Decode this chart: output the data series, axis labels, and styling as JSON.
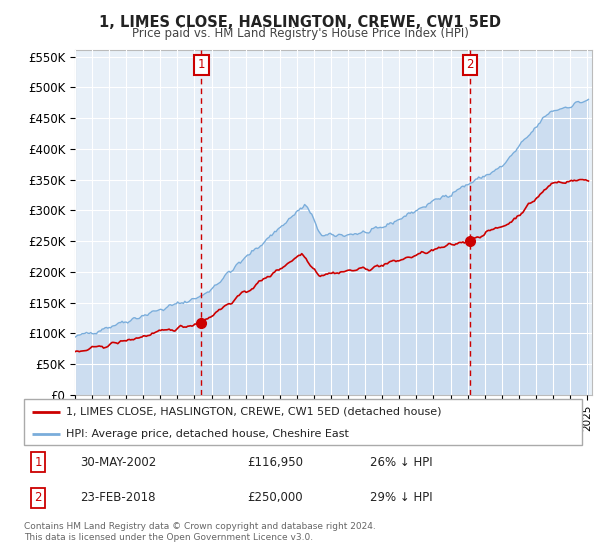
{
  "title": "1, LIMES CLOSE, HASLINGTON, CREWE, CW1 5ED",
  "subtitle": "Price paid vs. HM Land Registry's House Price Index (HPI)",
  "xlim": [
    1995.0,
    2025.3
  ],
  "ylim": [
    0,
    560000
  ],
  "yticks": [
    0,
    50000,
    100000,
    150000,
    200000,
    250000,
    300000,
    350000,
    400000,
    450000,
    500000,
    550000
  ],
  "ytick_labels": [
    "£0",
    "£50K",
    "£100K",
    "£150K",
    "£200K",
    "£250K",
    "£300K",
    "£350K",
    "£400K",
    "£450K",
    "£500K",
    "£550K"
  ],
  "xtick_years": [
    1995,
    1996,
    1997,
    1998,
    1999,
    2000,
    2001,
    2002,
    2003,
    2004,
    2005,
    2006,
    2007,
    2008,
    2009,
    2010,
    2011,
    2012,
    2013,
    2014,
    2015,
    2016,
    2017,
    2018,
    2019,
    2020,
    2021,
    2022,
    2023,
    2024,
    2025
  ],
  "red_line_color": "#cc0000",
  "blue_line_color": "#7aaddb",
  "blue_fill_color": "#ddeeff",
  "plot_bg_color": "#e8f0f8",
  "grid_color": "#ffffff",
  "sale1_x": 2002.41,
  "sale1_y": 116950,
  "sale1_label": "1",
  "sale2_x": 2018.15,
  "sale2_y": 250000,
  "sale2_label": "2",
  "legend_red": "1, LIMES CLOSE, HASLINGTON, CREWE, CW1 5ED (detached house)",
  "legend_blue": "HPI: Average price, detached house, Cheshire East",
  "table_row1": [
    "1",
    "30-MAY-2002",
    "£116,950",
    "26% ↓ HPI"
  ],
  "table_row2": [
    "2",
    "23-FEB-2018",
    "£250,000",
    "29% ↓ HPI"
  ],
  "footnote1": "Contains HM Land Registry data © Crown copyright and database right 2024.",
  "footnote2": "This data is licensed under the Open Government Licence v3.0.",
  "vline_color": "#cc0000",
  "marker_color": "#cc0000"
}
